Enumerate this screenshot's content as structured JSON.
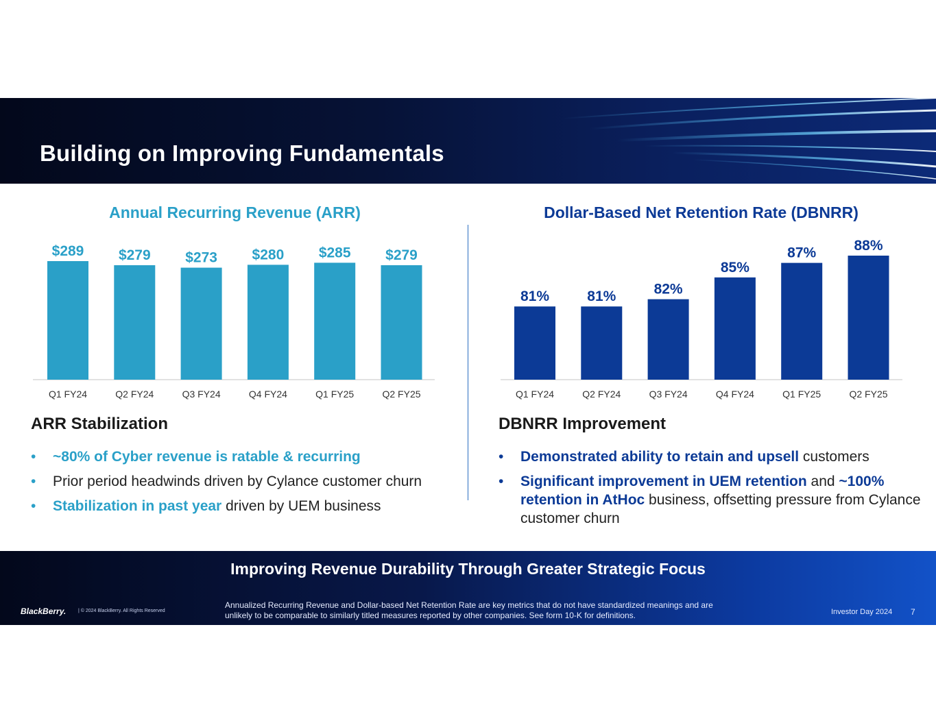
{
  "title": "Building on Improving Fundamentals",
  "chart_data": [
    {
      "type": "bar",
      "title": "Annual Recurring Revenue (ARR)",
      "categories": [
        "Q1 FY24",
        "Q2 FY24",
        "Q3 FY24",
        "Q4 FY24",
        "Q1 FY25",
        "Q2 FY25"
      ],
      "values": [
        289,
        279,
        273,
        280,
        285,
        279
      ],
      "labels": [
        "$289",
        "$279",
        "$273",
        "$280",
        "$285",
        "$279"
      ],
      "color": "#2aa0c8",
      "ylim": [
        0,
        289
      ],
      "grid": false
    },
    {
      "type": "bar",
      "title": "Dollar-Based Net Retention Rate (DBNRR)",
      "categories": [
        "Q1 FY24",
        "Q2 FY24",
        "Q3 FY24",
        "Q4 FY24",
        "Q1 FY25",
        "Q2 FY25"
      ],
      "values": [
        81,
        81,
        82,
        85,
        87,
        88
      ],
      "labels": [
        "81%",
        "81%",
        "82%",
        "85%",
        "87%",
        "88%"
      ],
      "color": "#0c3a96",
      "ylim": [
        78,
        88
      ],
      "grid": false
    }
  ],
  "arr_section": {
    "heading": "ARR Stabilization",
    "bullets": [
      {
        "highlight": "~80% of Cyber revenue is ratable & recurring",
        "text": ""
      },
      {
        "highlight": "",
        "text": "Prior period headwinds driven by Cylance customer churn"
      },
      {
        "highlight": "Stabilization in past year",
        "text": " driven by UEM business"
      }
    ]
  },
  "dbnrr_section": {
    "heading": "DBNRR Improvement",
    "bullets": [
      {
        "highlight": "Demonstrated ability to retain and upsell",
        "text": " customers"
      },
      {
        "highlight": "Significant improvement in UEM retention",
        "text": " and "
      },
      {
        "highlight": "~100% retention in AtHoc",
        "text": " business, offsetting pressure from Cylance customer churn"
      }
    ],
    "bullet_marker": "•"
  },
  "footer": {
    "tagline": "Improving Revenue Durability Through Greater Strategic Focus",
    "brand": "BlackBerry.",
    "copyright": "|  © 2024 BlackBerry.  All Rights Reserved",
    "disclaimer": "Annualized Recurring Revenue and Dollar-based Net Retention Rate are key metrics that  do not have standardized meanings and are unlikely to be comparable to similarly titled measures reported by other companies. See form 10-K for definitions.",
    "event": "Investor Day 2024",
    "page_number": "7"
  },
  "colors": {
    "arr_accent": "#2aa0c8",
    "dbnrr_accent": "#0c3a96",
    "header_bg": "#03081b"
  }
}
